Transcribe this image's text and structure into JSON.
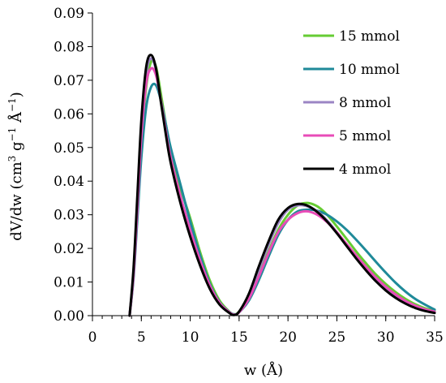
{
  "chart_data": {
    "type": "line",
    "title": "",
    "xlabel": "w (Å)",
    "ylabel_parts": [
      "dV/dw (cm",
      "3",
      " g",
      "−1",
      " Å",
      "−1",
      ")"
    ],
    "xlim": [
      0,
      35
    ],
    "ylim": [
      0,
      0.09
    ],
    "x_ticks": [
      0,
      5,
      10,
      15,
      20,
      25,
      30,
      35
    ],
    "x_tick_labels": [
      "0",
      "5",
      "10",
      "15",
      "20",
      "25",
      "30",
      "35"
    ],
    "y_ticks": [
      0,
      0.01,
      0.02,
      0.03,
      0.04,
      0.05,
      0.06,
      0.07,
      0.08,
      0.09
    ],
    "y_tick_labels": [
      "0.00",
      "0.01",
      "0.02",
      "0.03",
      "0.04",
      "0.05",
      "0.06",
      "0.07",
      "0.08",
      "0.09"
    ],
    "x_minor_step": 1,
    "grid": false,
    "legend_position": "top-right",
    "x": [
      3.8,
      4.2,
      4.6,
      5.0,
      5.5,
      6.0,
      6.5,
      7.0,
      7.5,
      8.0,
      9.0,
      10.0,
      11.0,
      12.0,
      13.0,
      14.0,
      14.5,
      15.0,
      16.0,
      17.0,
      18.0,
      19.0,
      20.0,
      21.0,
      22.0,
      23.0,
      24.0,
      25.0,
      26.0,
      27.0,
      28.0,
      29.0,
      30.0,
      31.0,
      32.0,
      33.0,
      34.0,
      35.0
    ],
    "series": [
      {
        "name": "15 mmol",
        "color": "#66cc33",
        "values": [
          0,
          0.012,
          0.032,
          0.052,
          0.068,
          0.0755,
          0.074,
          0.066,
          0.057,
          0.049,
          0.038,
          0.029,
          0.019,
          0.0105,
          0.0045,
          0.0012,
          0.0004,
          0.0012,
          0.0055,
          0.012,
          0.019,
          0.0255,
          0.03,
          0.0328,
          0.0335,
          0.0325,
          0.03,
          0.0265,
          0.0228,
          0.019,
          0.0155,
          0.0122,
          0.0094,
          0.007,
          0.005,
          0.0034,
          0.0022,
          0.0014
        ]
      },
      {
        "name": "10 mmol",
        "color": "#1f8a99",
        "values": [
          0,
          0.011,
          0.029,
          0.047,
          0.062,
          0.068,
          0.0685,
          0.064,
          0.057,
          0.05,
          0.039,
          0.028,
          0.018,
          0.0095,
          0.004,
          0.0011,
          0.0004,
          0.001,
          0.0045,
          0.0105,
          0.0175,
          0.024,
          0.0285,
          0.031,
          0.0315,
          0.0312,
          0.03,
          0.028,
          0.0255,
          0.0225,
          0.0193,
          0.016,
          0.0128,
          0.0098,
          0.0072,
          0.005,
          0.0033,
          0.0018
        ]
      },
      {
        "name": "8 mmol",
        "color": "#9b85c4",
        "values": [
          0,
          0.013,
          0.034,
          0.056,
          0.072,
          0.0765,
          0.073,
          0.064,
          0.055,
          0.047,
          0.0355,
          0.0255,
          0.0165,
          0.009,
          0.0038,
          0.001,
          0.0003,
          0.0011,
          0.006,
          0.0135,
          0.021,
          0.0275,
          0.0315,
          0.0328,
          0.0325,
          0.031,
          0.0283,
          0.0248,
          0.021,
          0.0172,
          0.0137,
          0.0105,
          0.0078,
          0.0056,
          0.0039,
          0.0026,
          0.0016,
          0.001
        ]
      },
      {
        "name": "5 mmol",
        "color": "#e84cb8",
        "values": [
          0,
          0.012,
          0.032,
          0.053,
          0.069,
          0.0735,
          0.0715,
          0.064,
          0.055,
          0.047,
          0.0355,
          0.0255,
          0.0165,
          0.009,
          0.0038,
          0.001,
          0.0003,
          0.001,
          0.005,
          0.0115,
          0.0185,
          0.0248,
          0.0285,
          0.0305,
          0.031,
          0.03,
          0.0278,
          0.0248,
          0.0213,
          0.0178,
          0.0144,
          0.0113,
          0.0086,
          0.0063,
          0.0044,
          0.003,
          0.0019,
          0.0012
        ]
      },
      {
        "name": "4 mmol",
        "color": "#000000",
        "values": [
          0,
          0.014,
          0.036,
          0.058,
          0.074,
          0.0775,
          0.0735,
          0.0635,
          0.054,
          0.0455,
          0.0335,
          0.0235,
          0.015,
          0.008,
          0.0033,
          0.0008,
          0.0002,
          0.0012,
          0.0065,
          0.0145,
          0.022,
          0.0285,
          0.032,
          0.0332,
          0.0327,
          0.0308,
          0.028,
          0.0245,
          0.0207,
          0.0169,
          0.0134,
          0.0102,
          0.0075,
          0.0053,
          0.0036,
          0.0023,
          0.0014,
          0.0008
        ]
      }
    ]
  }
}
